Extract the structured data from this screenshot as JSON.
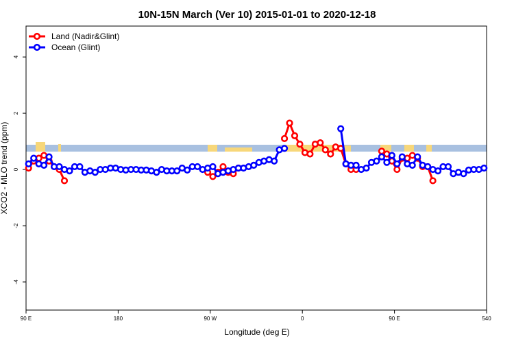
{
  "chart_data": {
    "type": "line",
    "title": "10N-15N March (Ver 10)   2015-01-01 to 2020-12-18",
    "x_label": "Longitude (deg E)",
    "y_label": "XCO2 - MLO trend (ppm)",
    "xlim": [
      90,
      540
    ],
    "xticks": [
      {
        "value": 90,
        "label": "90 E"
      },
      180,
      {
        "value": 270,
        "label": "90 W"
      },
      {
        "value": 360,
        "label": "0"
      },
      {
        "value": 450,
        "label": "90 E"
      },
      540
    ],
    "ylim": [
      -5,
      5.1
    ],
    "yticks": [
      -4,
      -2,
      0,
      2,
      4
    ],
    "legend": "top-left",
    "x": [
      92.5,
      97.5,
      102.5,
      107.5,
      112.5,
      117.5,
      122.5,
      127.5,
      132.5,
      137.5,
      142.5,
      147.5,
      152.5,
      157.5,
      162.5,
      167.5,
      172.5,
      177.5,
      182.5,
      187.5,
      192.5,
      197.5,
      202.5,
      207.5,
      212.5,
      217.5,
      222.5,
      227.5,
      232.5,
      237.5,
      242.5,
      247.5,
      252.5,
      257.5,
      262.5,
      267.5,
      272.5,
      277.5,
      282.5,
      287.5,
      292.5,
      297.5,
      302.5,
      307.5,
      312.5,
      317.5,
      322.5,
      327.5,
      332.5,
      337.5,
      342.5,
      347.5,
      352.5,
      357.5,
      362.5,
      367.5,
      372.5,
      377.5,
      382.5,
      387.5,
      392.5,
      397.5,
      402.5,
      407.5,
      412.5,
      417.5,
      422.5,
      427.5,
      432.5,
      437.5,
      442.5,
      447.5,
      452.5,
      457.5,
      462.5,
      467.5,
      472.5,
      477.5,
      482.5,
      487.5,
      492.5,
      497.5,
      502.5,
      507.5,
      512.5,
      517.5,
      522.5,
      527.5,
      532.5,
      537.5
    ],
    "series": [
      {
        "name": "Land (Nadir&Glint)",
        "color": "#ff0000",
        "values": [
          0.05,
          0.3,
          0.4,
          0.5,
          0.3,
          0.1,
          0.0,
          -0.4,
          null,
          null,
          null,
          null,
          null,
          null,
          null,
          null,
          null,
          null,
          null,
          null,
          null,
          null,
          null,
          null,
          null,
          null,
          null,
          null,
          null,
          null,
          null,
          null,
          null,
          null,
          null,
          -0.1,
          -0.25,
          -0.1,
          0.1,
          -0.1,
          -0.15,
          0.05,
          null,
          null,
          null,
          null,
          null,
          null,
          null,
          null,
          1.1,
          1.65,
          1.2,
          0.9,
          0.6,
          0.55,
          0.9,
          0.95,
          0.7,
          0.55,
          0.8,
          0.75,
          0.2,
          0.0,
          0.0,
          null,
          null,
          null,
          null,
          0.65,
          0.55,
          0.3,
          0.0,
          0.4,
          0.4,
          0.5,
          0.4,
          0.1,
          0.1,
          -0.4,
          null,
          null,
          null,
          null,
          null,
          null,
          null,
          null,
          null,
          null
        ]
      },
      {
        "name": "Ocean (Glint)",
        "color": "#0000ff",
        "values": [
          0.2,
          0.4,
          0.2,
          0.15,
          0.45,
          0.1,
          0.1,
          0.0,
          -0.05,
          0.1,
          0.1,
          -0.1,
          -0.05,
          -0.1,
          0.0,
          0.0,
          0.05,
          0.05,
          0.0,
          -0.02,
          0.0,
          0.0,
          -0.02,
          -0.02,
          -0.05,
          -0.1,
          0.0,
          -0.05,
          -0.05,
          -0.05,
          0.05,
          -0.02,
          0.1,
          0.1,
          0.0,
          0.05,
          0.1,
          -0.15,
          -0.1,
          -0.05,
          0.0,
          0.05,
          0.05,
          0.1,
          0.15,
          0.25,
          0.3,
          0.35,
          0.3,
          0.7,
          0.75,
          null,
          null,
          null,
          null,
          null,
          null,
          null,
          null,
          null,
          null,
          1.45,
          0.2,
          0.15,
          0.15,
          0.0,
          0.05,
          0.25,
          0.3,
          0.45,
          0.25,
          0.5,
          0.2,
          0.45,
          0.2,
          0.15,
          0.45,
          0.15,
          0.1,
          0.0,
          -0.05,
          0.1,
          0.1,
          -0.15,
          -0.1,
          -0.15,
          -0.02,
          0.0,
          0.0,
          0.05
        ]
      }
    ]
  }
}
